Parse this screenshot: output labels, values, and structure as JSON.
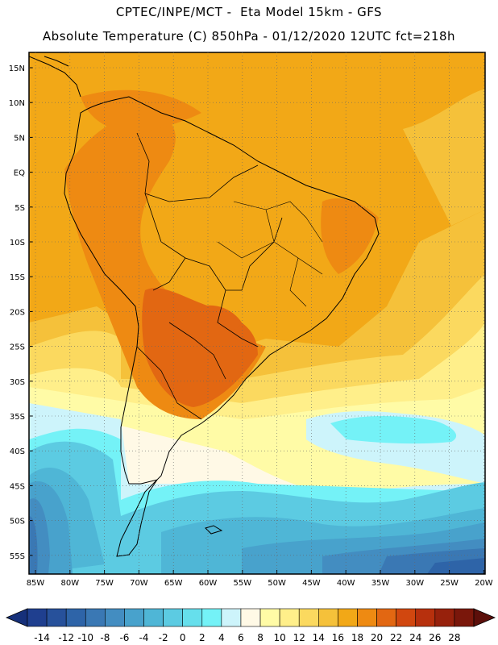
{
  "header": {
    "line1": "CPTEC/INPE/MCT -  Eta Model 15km - GFS",
    "line2": "Absolute Temperature (C) 850hPa - 01/12/2020 12UTC fct=218h"
  },
  "axes": {
    "lat_labels": [
      "15N",
      "10N",
      "5N",
      "EQ",
      "5S",
      "10S",
      "15S",
      "20S",
      "25S",
      "30S",
      "35S",
      "40S",
      "45S",
      "50S",
      "55S"
    ],
    "lon_labels": [
      "85W",
      "80W",
      "75W",
      "70W",
      "65W",
      "60W",
      "55W",
      "50W",
      "45W",
      "40W",
      "35W",
      "30W",
      "25W",
      "20W"
    ]
  },
  "colorbar": {
    "ticks": [
      "-14",
      "-12",
      "-10",
      "-8",
      "-6",
      "-4",
      "-2",
      "0",
      "2",
      "4",
      "6",
      "8",
      "10",
      "12",
      "14",
      "16",
      "18",
      "20",
      "22",
      "24",
      "26",
      "28"
    ],
    "colors": [
      "#1f3f8f",
      "#27519b",
      "#2e64a8",
      "#3a78b4",
      "#438dc1",
      "#48a2cc",
      "#4fb6d6",
      "#5ccbe2",
      "#66dfec",
      "#74f2f7",
      "#cdf4fb",
      "#fff9e6",
      "#fffba6",
      "#ffef8a",
      "#fbd95f",
      "#f5c13a",
      "#f2a817",
      "#ee8a12",
      "#e26712",
      "#d1470f",
      "#b7300d",
      "#97210c",
      "#7a170b"
    ],
    "under_color": "#16307a",
    "over_color": "#5c0f0a"
  }
}
